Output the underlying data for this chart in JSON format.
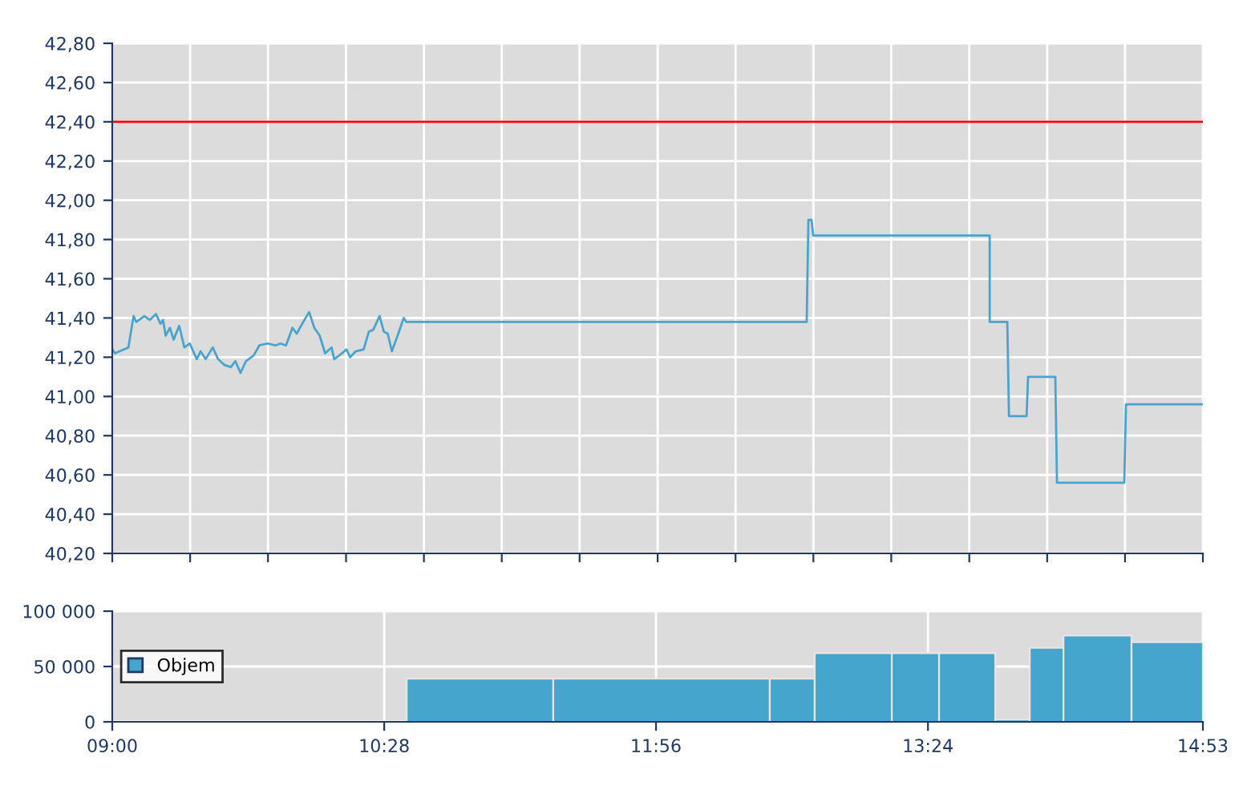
{
  "chart_data": [
    {
      "type": "line",
      "x": [
        9.0,
        9.015,
        9.087,
        9.115,
        9.13,
        9.173,
        9.202,
        9.236,
        9.26,
        9.274,
        9.288,
        9.311,
        9.331,
        9.361,
        9.389,
        9.418,
        9.456,
        9.476,
        9.504,
        9.542,
        9.571,
        9.606,
        9.64,
        9.664,
        9.692,
        9.721,
        9.764,
        9.793,
        9.837,
        9.88,
        9.908,
        9.937,
        9.972,
        9.995,
        10.024,
        10.062,
        10.09,
        10.119,
        10.148,
        10.183,
        10.197,
        10.24,
        10.263,
        10.283,
        10.313,
        10.356,
        10.384,
        10.408,
        10.442,
        10.465,
        10.486,
        10.508,
        10.543,
        10.572,
        10.586,
        12.746,
        12.755,
        12.772,
        12.781,
        13.733,
        13.733,
        13.828,
        13.837,
        13.932,
        13.94,
        14.087,
        14.096,
        14.459,
        14.468,
        14.883
      ],
      "series": [
        {
          "color": "#4aa3cc",
          "values": [
            41.24,
            41.22,
            41.25,
            41.41,
            41.38,
            41.41,
            41.39,
            41.42,
            41.37,
            41.39,
            41.31,
            41.35,
            41.29,
            41.36,
            41.25,
            41.27,
            41.19,
            41.23,
            41.19,
            41.25,
            41.19,
            41.16,
            41.15,
            41.18,
            41.12,
            41.18,
            41.21,
            41.26,
            41.27,
            41.26,
            41.27,
            41.26,
            41.35,
            41.32,
            41.37,
            41.43,
            41.35,
            41.31,
            41.22,
            41.25,
            41.19,
            41.22,
            41.24,
            41.2,
            41.23,
            41.24,
            41.33,
            41.34,
            41.41,
            41.33,
            41.32,
            41.23,
            41.32,
            41.4,
            41.38,
            41.38,
            41.9,
            41.9,
            41.82,
            41.82,
            41.38,
            41.38,
            40.9,
            40.9,
            41.1,
            41.1,
            40.56,
            40.56,
            40.96,
            40.96
          ]
        }
      ],
      "xlim": [
        9.0,
        14.883
      ],
      "xticks": [
        {
          "value": 9.0,
          "label": null
        },
        {
          "value": 9.42,
          "label": null
        },
        {
          "value": 9.84,
          "label": null
        },
        {
          "value": 10.261,
          "label": null
        },
        {
          "value": 10.681,
          "label": null
        },
        {
          "value": 11.101,
          "label": null
        },
        {
          "value": 11.521,
          "label": null
        },
        {
          "value": 11.942,
          "label": null
        },
        {
          "value": 12.362,
          "label": null
        },
        {
          "value": 12.782,
          "label": null
        },
        {
          "value": 13.202,
          "label": null
        },
        {
          "value": 13.623,
          "label": null
        },
        {
          "value": 14.043,
          "label": null
        },
        {
          "value": 14.463,
          "label": null
        },
        {
          "value": 14.883,
          "label": null
        }
      ],
      "ylim": [
        40.2,
        42.8
      ],
      "yticks": [
        {
          "value": 40.2,
          "label": "40,20"
        },
        {
          "value": 40.4,
          "label": "40,40"
        },
        {
          "value": 40.6,
          "label": "40,60"
        },
        {
          "value": 40.8,
          "label": "40,80"
        },
        {
          "value": 41.0,
          "label": "41,00"
        },
        {
          "value": 41.2,
          "label": "41,20"
        },
        {
          "value": 41.4,
          "label": "41,40"
        },
        {
          "value": 41.6,
          "label": "41,60"
        },
        {
          "value": 41.8,
          "label": "41,80"
        },
        {
          "value": 42.0,
          "label": "42,00"
        },
        {
          "value": 42.2,
          "label": "42,20"
        },
        {
          "value": 42.4,
          "label": "42,40"
        },
        {
          "value": 42.6,
          "label": "42,60"
        },
        {
          "value": 42.8,
          "label": "42,80"
        }
      ],
      "ref_lines": [
        {
          "axis": "y",
          "value": 42.4,
          "color": "#ff0000"
        }
      ],
      "grid": true,
      "marker": "none",
      "line_style": "solid",
      "tick_labels": "y"
    },
    {
      "type": "histogram",
      "bins": [
        10.588,
        11.379,
        12.547,
        12.789,
        13.205,
        13.46,
        13.763,
        13.949,
        14.131,
        14.498,
        14.883
      ],
      "series": [
        {
          "name": "Objem",
          "color": "#46a5cd",
          "values": [
            39000,
            39000,
            39000,
            62000,
            62000,
            62000,
            2000,
            67000,
            78000,
            72000
          ]
        }
      ],
      "xlim": [
        9.0,
        14.883
      ],
      "xticks": [
        {
          "value": 9.0,
          "label": "09:00"
        },
        {
          "value": 10.467,
          "label": "10:28"
        },
        {
          "value": 11.933,
          "label": "11:56"
        },
        {
          "value": 13.4,
          "label": "13:24"
        },
        {
          "value": 14.883,
          "label": "14:53"
        }
      ],
      "ylim": [
        0,
        100000
      ],
      "yticks": [
        0,
        {
          "value": 50000,
          "label": "50 000"
        },
        {
          "value": 100000,
          "label": "100 000"
        }
      ],
      "grid": true,
      "legend": "left"
    }
  ]
}
